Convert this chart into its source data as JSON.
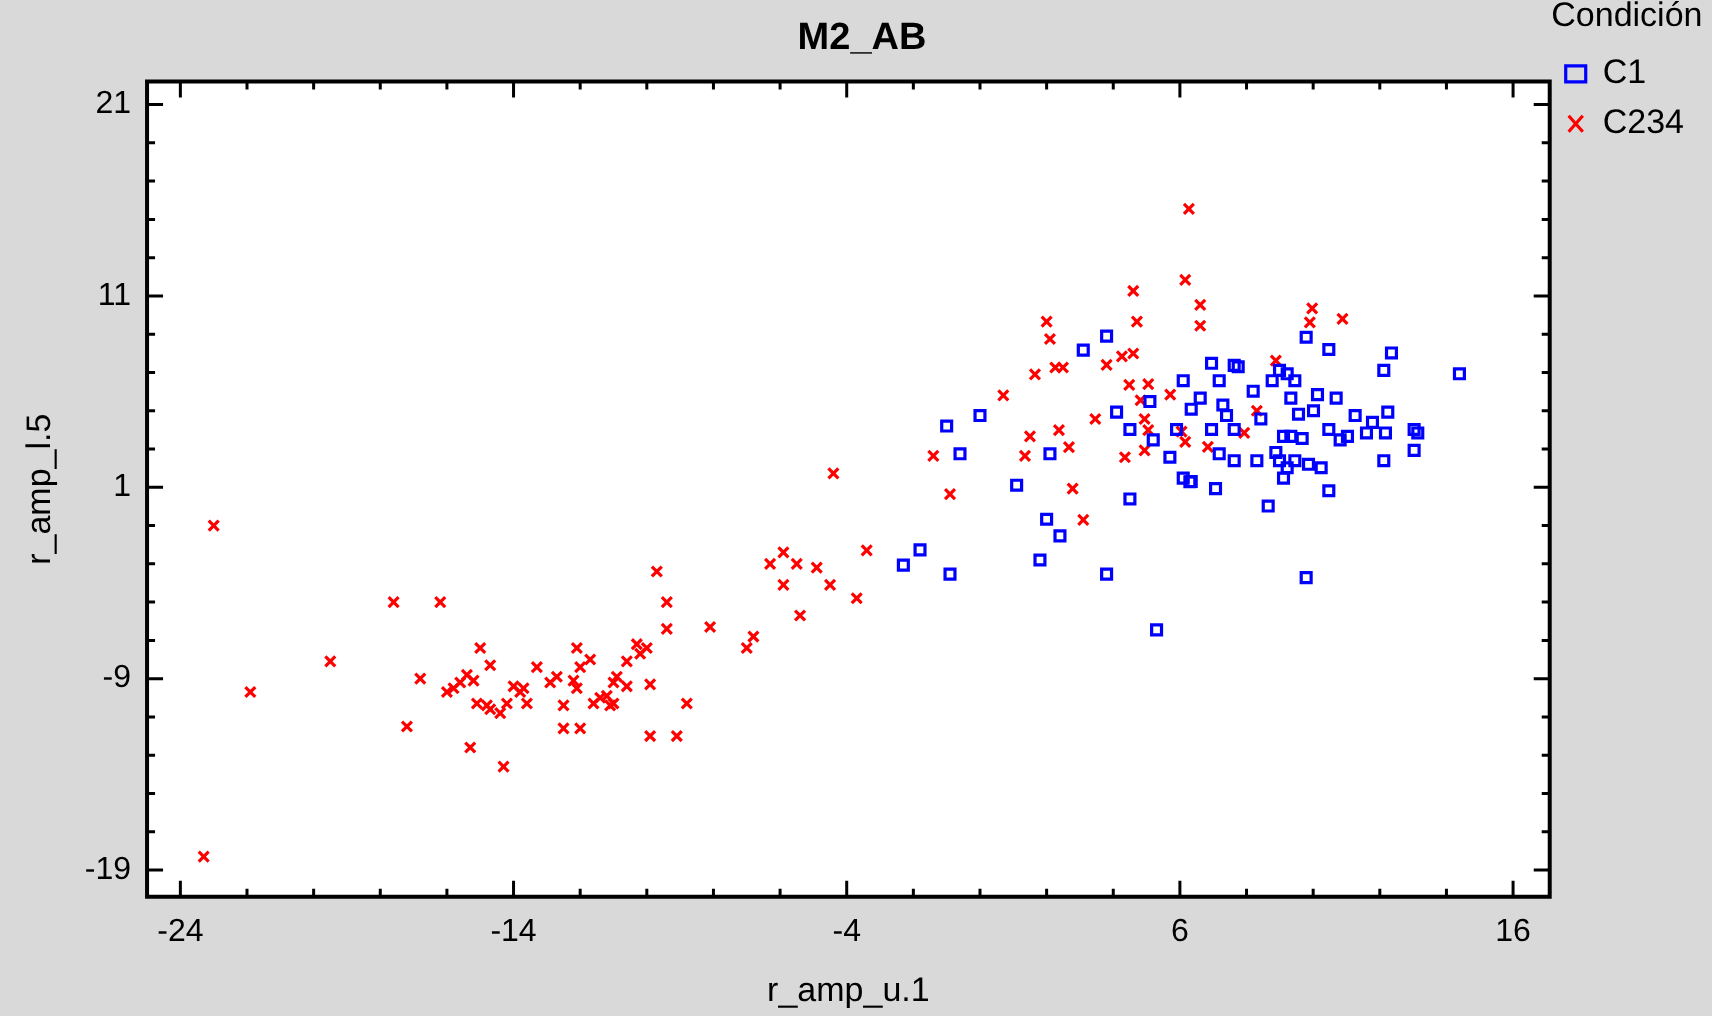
{
  "chart_data": {
    "type": "scatter",
    "title": "M2_AB",
    "xlabel": "r_amp_u.1",
    "ylabel": "r_amp_l.5",
    "legend_title": "Condición",
    "legend": "top right",
    "grid": false,
    "xlim": [
      -25,
      17.1
    ],
    "ylim": [
      -20.4,
      22.2
    ],
    "xticks": [
      -24,
      {
        "value": -22,
        "label": null
      },
      {
        "value": -20,
        "label": null
      },
      {
        "value": -18,
        "label": null
      },
      {
        "value": -16,
        "label": null
      },
      -14,
      {
        "value": -12,
        "label": null
      },
      {
        "value": -10,
        "label": null
      },
      {
        "value": -8,
        "label": null
      },
      {
        "value": -6,
        "label": null
      },
      -4,
      {
        "value": -2,
        "label": null
      },
      {
        "value": 0,
        "label": null
      },
      {
        "value": 2,
        "label": null
      },
      {
        "value": 4,
        "label": null
      },
      6,
      {
        "value": 8,
        "label": null
      },
      {
        "value": 10,
        "label": null
      },
      {
        "value": 12,
        "label": null
      },
      {
        "value": 14,
        "label": null
      },
      16
    ],
    "yticks": [
      -19,
      {
        "value": -17,
        "label": null
      },
      {
        "value": -15,
        "label": null
      },
      {
        "value": -13,
        "label": null
      },
      {
        "value": -11,
        "label": null
      },
      -9,
      {
        "value": -7,
        "label": null
      },
      {
        "value": -5,
        "label": null
      },
      {
        "value": -3,
        "label": null
      },
      {
        "value": -1,
        "label": null
      },
      1,
      {
        "value": 3,
        "label": null
      },
      {
        "value": 5,
        "label": null
      },
      {
        "value": 7,
        "label": null
      },
      {
        "value": 9,
        "label": null
      },
      11,
      {
        "value": 13,
        "label": null
      },
      {
        "value": 15,
        "label": null
      },
      {
        "value": 17,
        "label": null
      },
      {
        "value": 19,
        "label": null
      },
      21
    ],
    "series": [
      {
        "name": "C1",
        "color": "#0000ff",
        "marker": "square",
        "x": [
          -1.0,
          -0.6,
          0.0,
          -2.3,
          -1.8,
          -0.9,
          1.1,
          1.8,
          2.0,
          2.4,
          2.1,
          3.1,
          3.8,
          4.1,
          4.5,
          4.5,
          3.8,
          5.3,
          5.1,
          5.2,
          5.7,
          6.1,
          5.9,
          6.1,
          6.3,
          6.95,
          7.18,
          7.63,
          7.75,
          6.61,
          6.34,
          7.29,
          7.4,
          6.95,
          7.63,
          7.18,
          7.63,
          6.34,
          7.07,
          8.2,
          8.31,
          8.43,
          8.65,
          8.77,
          8.99,
          9.22,
          9.33,
          9.45,
          9.56,
          9.11,
          8.88,
          9.33,
          9.67,
          8.99,
          9.45,
          9.22,
          9.11,
          9.86,
          10.24,
          9.79,
          9.79,
          10.01,
          10.13,
          10.47,
          10.47,
          10.47,
          10.69,
          10.81,
          11.03,
          11.26,
          11.6,
          11.78,
          12.17,
          12.12,
          12.35,
          12.12,
          12.24,
          13.03,
          13.14,
          13.03,
          14.39
        ],
        "values": [
          4.2,
          2.75,
          4.75,
          -3.07,
          -2.27,
          -3.54,
          1.11,
          -2.8,
          -0.67,
          -1.54,
          2.75,
          8.17,
          8.9,
          4.93,
          4.02,
          0.39,
          -3.54,
          -6.45,
          5.48,
          3.48,
          2.57,
          6.57,
          4.02,
          1.48,
          1.29,
          7.48,
          6.57,
          7.37,
          7.3,
          5.66,
          5.08,
          5.3,
          4.75,
          4.02,
          4.02,
          2.75,
          2.39,
          1.3,
          0.93,
          6.02,
          2.39,
          4.57,
          0.02,
          6.57,
          7.11,
          6.93,
          5.66,
          6.57,
          4.82,
          3.66,
          2.82,
          3.66,
          3.55,
          2.39,
          2.39,
          2.02,
          1.48,
          2.2,
          2.02,
          8.84,
          -3.72,
          5.0,
          5.84,
          8.2,
          4.02,
          0.82,
          5.66,
          3.48,
          3.66,
          4.75,
          3.84,
          4.39,
          3.84,
          7.11,
          8.02,
          2.39,
          4.93,
          4.02,
          3.84,
          2.93,
          6.93
        ]
      },
      {
        "name": "C234",
        "color": "#ff0000",
        "marker": "cross",
        "x": [
          -23.0,
          -21.9,
          -19.5,
          -23.3,
          -17.6,
          -16.2,
          -16.8,
          -17.2,
          -16.0,
          -15.8,
          -15.6,
          -15.4,
          -15.2,
          -15.0,
          -14.7,
          -15.3,
          -14.3,
          -15.1,
          -14.8,
          -14.7,
          -14.4,
          -14.2,
          -14.0,
          -13.8,
          -13.7,
          -13.6,
          -13.3,
          -12.9,
          -12.7,
          -12.5,
          -12.5,
          -12.0,
          -12.2,
          -12.1,
          -12.1,
          -12.0,
          -11.7,
          -11.6,
          -11.4,
          -11.2,
          -11.1,
          -11.0,
          -11.0,
          -10.9,
          -10.6,
          -10.6,
          -10.3,
          -10.2,
          -10.0,
          -9.9,
          -9.9,
          -9.7,
          -9.4,
          -9.4,
          -9.1,
          -8.8,
          -8.1,
          -7.0,
          -6.8,
          -6.3,
          -5.9,
          -5.9,
          -5.5,
          -5.4,
          -4.9,
          -4.5,
          -3.7,
          -3.4,
          -4.4,
          -1.4,
          -0.9,
          0.7,
          1.35,
          1.5,
          1.65,
          2.0,
          2.1,
          2.26,
          2.49,
          2.37,
          2.67,
          2.78,
          3.1,
          3.46,
          3.8,
          4.26,
          4.6,
          4.6,
          4.71,
          4.48,
          5.05,
          4.82,
          4.94,
          5.05,
          4.35,
          4.94,
          5.71,
          6.05,
          6.16,
          6.27,
          6.16,
          6.61,
          6.61,
          9.97,
          9.9,
          10.88,
          8.88,
          8.31,
          7.93,
          6.84
        ],
        "values": [
          -1.0,
          -9.7,
          -8.1,
          -18.3,
          -5.0,
          -5.0,
          -9.0,
          -11.5,
          -9.7,
          -9.5,
          -9.2,
          -8.8,
          -9.1,
          -7.4,
          -8.3,
          -12.6,
          -13.6,
          -10.3,
          -10.4,
          -10.6,
          -10.8,
          -10.3,
          -9.4,
          -9.7,
          -9.5,
          -10.3,
          -8.4,
          -9.2,
          -8.9,
          -10.4,
          -11.6,
          -11.6,
          -9.1,
          -9.5,
          -7.4,
          -8.4,
          -8.0,
          -10.3,
          -10.0,
          -9.9,
          -10.4,
          -10.3,
          -9.2,
          -8.9,
          -9.4,
          -8.1,
          -7.2,
          -7.7,
          -7.4,
          -9.3,
          -12.0,
          -3.4,
          -5.0,
          -6.4,
          -12.0,
          -10.3,
          -6.3,
          -7.4,
          -6.8,
          -3.0,
          -2.4,
          -4.1,
          -3.0,
          -5.7,
          -3.2,
          -4.1,
          -4.8,
          -2.3,
          1.73,
          2.64,
          0.64,
          5.8,
          2.64,
          3.66,
          6.9,
          9.66,
          8.75,
          7.26,
          7.26,
          3.99,
          3.1,
          0.93,
          -0.7,
          4.57,
          7.4,
          7.84,
          7.99,
          11.26,
          9.66,
          6.35,
          6.39,
          5.55,
          4.57,
          3.99,
          2.57,
          2.93,
          5.84,
          3.91,
          3.37,
          15.55,
          11.84,
          10.53,
          9.44,
          10.35,
          9.62,
          9.8,
          7.62,
          5.0,
          3.84,
          3.11
        ]
      }
    ]
  }
}
